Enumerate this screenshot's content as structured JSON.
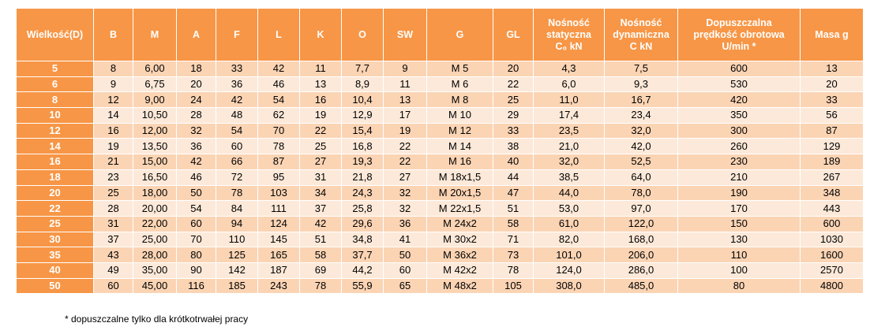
{
  "headers": [
    [
      "Wielkość(D)"
    ],
    [
      "B"
    ],
    [
      "M"
    ],
    [
      "A"
    ],
    [
      "F"
    ],
    [
      "L"
    ],
    [
      "K"
    ],
    [
      "O"
    ],
    [
      "SW"
    ],
    [
      "G"
    ],
    [
      "GL"
    ],
    [
      "Nośność",
      "statyczna",
      "C₀ kN"
    ],
    [
      "Nośność",
      "dynamiczna",
      "C kN"
    ],
    [
      "Dopuszczalna",
      "prędkość obrotowa",
      "U/min *"
    ],
    [
      "Masa g"
    ]
  ],
  "rows": [
    [
      "5",
      "8",
      "6,00",
      "18",
      "33",
      "42",
      "11",
      "7,7",
      "9",
      "M 5",
      "20",
      "4,3",
      "7,5",
      "600",
      "13"
    ],
    [
      "6",
      "9",
      "6,75",
      "20",
      "36",
      "46",
      "13",
      "8,9",
      "11",
      "M 6",
      "22",
      "6,0",
      "9,3",
      "530",
      "20"
    ],
    [
      "8",
      "12",
      "9,00",
      "24",
      "42",
      "54",
      "16",
      "10,4",
      "13",
      "M 8",
      "25",
      "11,0",
      "16,7",
      "420",
      "33"
    ],
    [
      "10",
      "14",
      "10,50",
      "28",
      "48",
      "62",
      "19",
      "12,9",
      "17",
      "M 10",
      "29",
      "17,4",
      "23,4",
      "350",
      "56"
    ],
    [
      "12",
      "16",
      "12,00",
      "32",
      "54",
      "70",
      "22",
      "15,4",
      "19",
      "M 12",
      "33",
      "23,5",
      "32,0",
      "300",
      "87"
    ],
    [
      "14",
      "19",
      "13,50",
      "36",
      "60",
      "78",
      "25",
      "16,8",
      "22",
      "M 14",
      "38",
      "21,0",
      "42,0",
      "260",
      "129"
    ],
    [
      "16",
      "21",
      "15,00",
      "42",
      "66",
      "87",
      "27",
      "19,3",
      "22",
      "M 16",
      "40",
      "32,0",
      "52,5",
      "230",
      "189"
    ],
    [
      "18",
      "23",
      "16,50",
      "46",
      "72",
      "95",
      "31",
      "21,8",
      "27",
      "M 18x1,5",
      "44",
      "38,5",
      "64,0",
      "210",
      "267"
    ],
    [
      "20",
      "25",
      "18,00",
      "50",
      "78",
      "103",
      "34",
      "24,3",
      "32",
      "M 20x1,5",
      "47",
      "44,0",
      "78,0",
      "190",
      "348"
    ],
    [
      "22",
      "28",
      "20,00",
      "54",
      "84",
      "111",
      "37",
      "25,8",
      "32",
      "M 22x1,5",
      "51",
      "53,0",
      "97,0",
      "170",
      "443"
    ],
    [
      "25",
      "31",
      "22,00",
      "60",
      "94",
      "124",
      "42",
      "29,6",
      "36",
      "M 24x2",
      "58",
      "61,0",
      "122,0",
      "150",
      "600"
    ],
    [
      "30",
      "37",
      "25,00",
      "70",
      "110",
      "145",
      "51",
      "34,8",
      "41",
      "M 30x2",
      "71",
      "82,0",
      "168,0",
      "130",
      "1030"
    ],
    [
      "35",
      "43",
      "28,00",
      "80",
      "125",
      "165",
      "58",
      "37,7",
      "50",
      "M 36x2",
      "73",
      "101,0",
      "206,0",
      "110",
      "1600"
    ],
    [
      "40",
      "49",
      "35,00",
      "90",
      "142",
      "187",
      "69",
      "44,2",
      "60",
      "M 42x2",
      "78",
      "124,0",
      "286,0",
      "100",
      "2570"
    ],
    [
      "50",
      "60",
      "45,00",
      "116",
      "185",
      "243",
      "78",
      "55,9",
      "65",
      "M 48x2",
      "105",
      "308,0",
      "485,0",
      "80",
      "4800"
    ]
  ],
  "footnote": "* dopuszczalne tylko dla krótkotrwałej pracy",
  "colors": {
    "header_bg": "#f79646",
    "row_dark": "#fbd4b4",
    "row_light": "#fde9d9"
  }
}
